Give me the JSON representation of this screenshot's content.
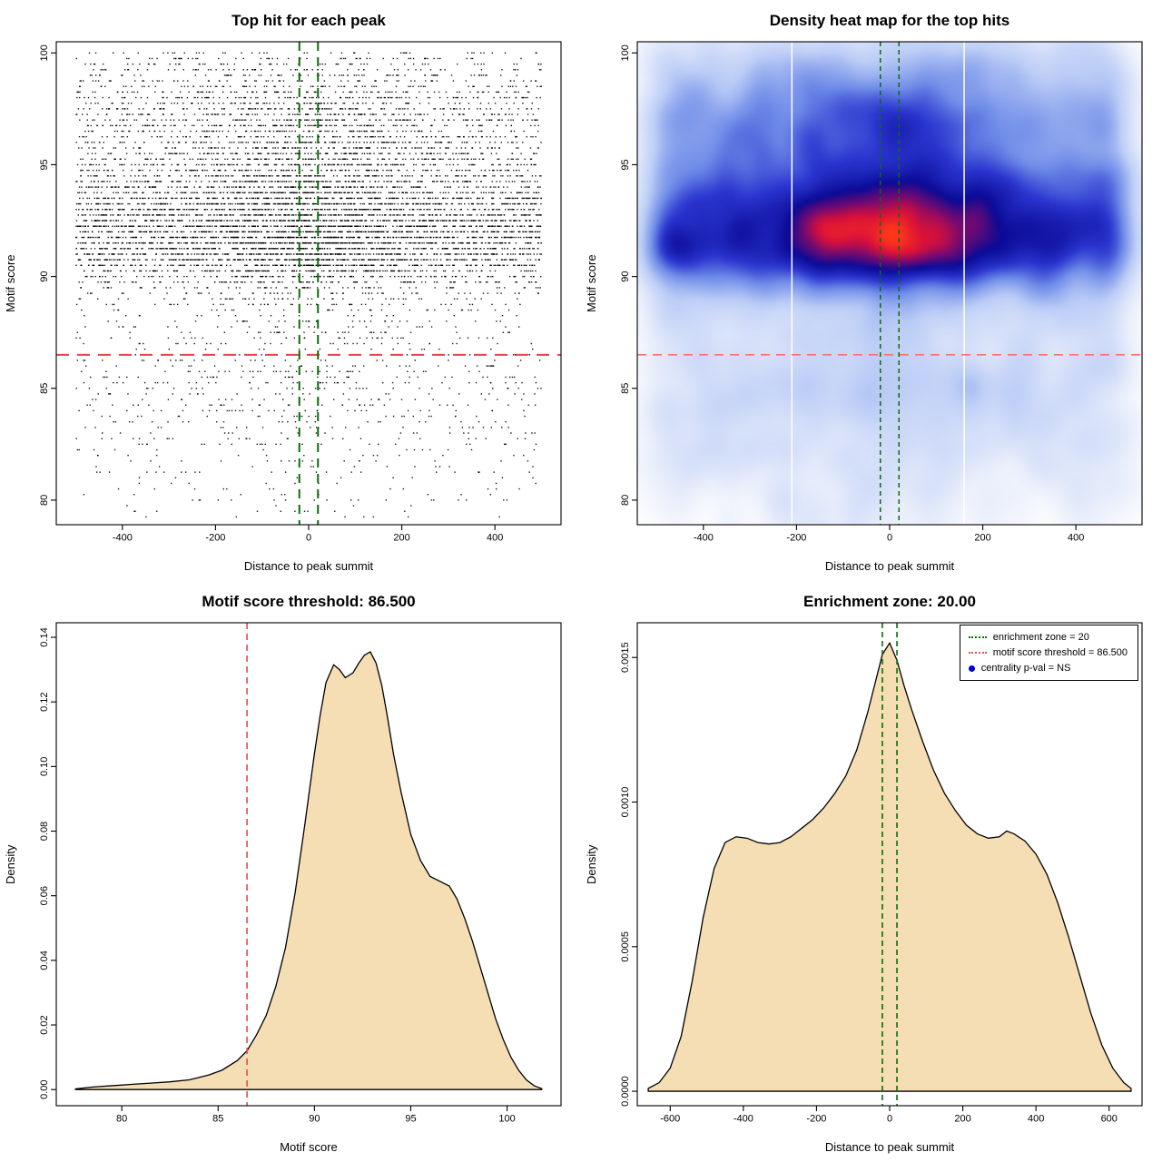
{
  "figure": {
    "background": "#ffffff"
  },
  "charts": [
    {
      "id": "top-hits-scatter",
      "type": "scatter",
      "title": "Top hit for each peak",
      "xlabel": "Distance to peak summit",
      "ylabel": "Motif score",
      "xlim": [
        -542,
        542
      ],
      "ylim": [
        78.9,
        100.5
      ],
      "xticks": [
        -400,
        -200,
        0,
        200,
        400
      ],
      "xtick_labels": [
        "-400",
        "-200",
        "0",
        "200",
        "400"
      ],
      "yticks": [
        80,
        85,
        90,
        95,
        100
      ],
      "ytick_labels": [
        "80",
        "85",
        "90",
        "95",
        "100"
      ],
      "point_color": "#000000",
      "threshold": {
        "y": 86.5,
        "color": "#e64545",
        "dash": [
          14,
          9
        ],
        "width": 2
      },
      "zone": {
        "x": [
          -20,
          20
        ],
        "color": "#0a6d0a",
        "dash": [
          10,
          7
        ],
        "width": 2
      },
      "simulation": {
        "seed": 42,
        "n": 9000,
        "x_range": [
          -500,
          500
        ],
        "y_range": [
          79.0,
          100.1
        ],
        "y_quantize": 0.25,
        "x_components": [
          {
            "type": "uniform",
            "min": -500,
            "max": 500,
            "w": 0.74
          },
          {
            "type": "normal",
            "mean": 0,
            "sd": 150,
            "w": 0.26
          }
        ],
        "y_components": [
          {
            "type": "normal",
            "mean": 91.3,
            "sd": 1.05,
            "w": 0.28
          },
          {
            "type": "normal",
            "mean": 93.0,
            "sd": 1.3,
            "w": 0.26
          },
          {
            "type": "normal",
            "mean": 95.6,
            "sd": 1.8,
            "w": 0.14
          },
          {
            "type": "normal",
            "mean": 97.6,
            "sd": 1.7,
            "w": 0.12
          },
          {
            "type": "uniform",
            "min": 87.0,
            "max": 100.0,
            "w": 0.11
          },
          {
            "type": "normal",
            "mean": 85.0,
            "sd": 1.9,
            "w": 0.06
          },
          {
            "type": "uniform",
            "min": 79.2,
            "max": 86.5,
            "w": 0.03
          }
        ]
      }
    },
    {
      "id": "top-hits-heatmap",
      "type": "heatmap",
      "title": "Density heat map for the top hits",
      "xlabel": "Distance to peak summit",
      "ylabel": "Motif score",
      "xlim": [
        -542,
        542
      ],
      "ylim": [
        78.9,
        100.5
      ],
      "xticks": [
        -400,
        -200,
        0,
        200,
        400
      ],
      "xtick_labels": [
        "-400",
        "-200",
        "0",
        "200",
        "400"
      ],
      "yticks": [
        80,
        85,
        90,
        95,
        100
      ],
      "ytick_labels": [
        "80",
        "85",
        "90",
        "95",
        "100"
      ],
      "gamma": 0.5,
      "colormap": [
        [
          0.0,
          "#ffffff"
        ],
        [
          0.12,
          "#e9eefb"
        ],
        [
          0.3,
          "#bccdf6"
        ],
        [
          0.48,
          "#6f8ce8"
        ],
        [
          0.62,
          "#2a35cf"
        ],
        [
          0.75,
          "#0a0a96"
        ],
        [
          0.85,
          "#7a0a6e"
        ],
        [
          0.92,
          "#d8103a"
        ],
        [
          1.0,
          "#ff3818"
        ]
      ],
      "white_lines": [
        -210,
        160
      ],
      "threshold": {
        "y": 86.5,
        "color": "#ff7070",
        "dash": [
          10,
          7
        ],
        "width": 1.6
      },
      "zone": {
        "x": [
          -20,
          20
        ],
        "color": "#0a6d0a",
        "dash": [
          5,
          4
        ],
        "width": 1.5
      },
      "simulation": {
        "seed": 7,
        "n": 9000,
        "x_range": [
          -500,
          500
        ],
        "y_range": [
          79.0,
          100.1
        ],
        "y_quantize": 0.25,
        "x_components": [
          {
            "type": "uniform",
            "min": -500,
            "max": 500,
            "w": 0.74
          },
          {
            "type": "normal",
            "mean": 0,
            "sd": 150,
            "w": 0.26
          }
        ],
        "y_components": [
          {
            "type": "normal",
            "mean": 91.3,
            "sd": 1.05,
            "w": 0.28
          },
          {
            "type": "normal",
            "mean": 93.0,
            "sd": 1.3,
            "w": 0.26
          },
          {
            "type": "normal",
            "mean": 95.6,
            "sd": 1.8,
            "w": 0.14
          },
          {
            "type": "normal",
            "mean": 97.6,
            "sd": 1.7,
            "w": 0.12
          },
          {
            "type": "uniform",
            "min": 87.0,
            "max": 100.0,
            "w": 0.11
          },
          {
            "type": "normal",
            "mean": 85.0,
            "sd": 1.9,
            "w": 0.06
          },
          {
            "type": "uniform",
            "min": 79.2,
            "max": 86.5,
            "w": 0.03
          }
        ]
      }
    },
    {
      "id": "motif-score-density",
      "type": "area",
      "title": "Motif score threshold: 86.500",
      "xlabel": "Motif score",
      "ylabel": "Density",
      "xlim": [
        76.6,
        102.8
      ],
      "ylim": [
        -0.005,
        0.1445
      ],
      "xticks": [
        80,
        85,
        90,
        95,
        100
      ],
      "xtick_labels": [
        "80",
        "85",
        "90",
        "95",
        "100"
      ],
      "yticks": [
        0,
        0.02,
        0.04,
        0.06,
        0.08,
        0.1,
        0.12,
        0.14
      ],
      "ytick_labels": [
        "0.00",
        "0.02",
        "0.04",
        "0.06",
        "0.08",
        "0.10",
        "0.12",
        "0.14"
      ],
      "fill": "#f5deb3",
      "line_color": "#000000",
      "threshold": {
        "x": 86.5,
        "color": "#e05050",
        "dash": [
          7,
          5
        ],
        "width": 1.6
      },
      "curve": {
        "x": [
          77.6,
          78.5,
          79.5,
          80.5,
          81.5,
          82.5,
          83.5,
          84.5,
          85.2,
          86,
          86.5,
          87,
          87.5,
          88,
          88.5,
          89,
          89.5,
          90,
          90.3,
          90.6,
          91,
          91.3,
          91.6,
          92,
          92.3,
          92.6,
          92.9,
          93.2,
          93.5,
          93.8,
          94.1,
          94.5,
          95,
          95.5,
          96,
          96.5,
          97,
          97.4,
          97.8,
          98.2,
          98.6,
          99,
          99.4,
          99.8,
          100.2,
          100.6,
          101,
          101.4,
          101.8
        ],
        "y": [
          0.0002,
          0.0008,
          0.0012,
          0.0016,
          0.002,
          0.0024,
          0.003,
          0.0045,
          0.006,
          0.009,
          0.012,
          0.017,
          0.023,
          0.032,
          0.044,
          0.061,
          0.082,
          0.104,
          0.116,
          0.126,
          0.1315,
          0.13,
          0.1275,
          0.129,
          0.132,
          0.1345,
          0.1355,
          0.132,
          0.125,
          0.115,
          0.104,
          0.092,
          0.079,
          0.071,
          0.066,
          0.0645,
          0.063,
          0.059,
          0.053,
          0.046,
          0.038,
          0.03,
          0.022,
          0.0155,
          0.01,
          0.006,
          0.003,
          0.0012,
          0.0003
        ]
      }
    },
    {
      "id": "distance-density",
      "type": "area",
      "title": "Enrichment zone: 20.00",
      "xlabel": "Distance to peak summit",
      "ylabel": "Density",
      "xlim": [
        -690,
        690
      ],
      "ylim": [
        -5e-05,
        0.00162
      ],
      "xticks": [
        -600,
        -400,
        -200,
        0,
        200,
        400,
        600
      ],
      "xtick_labels": [
        "-600",
        "-400",
        "-200",
        "0",
        "200",
        "400",
        "600"
      ],
      "yticks": [
        0,
        0.0005,
        0.001,
        0.0015
      ],
      "ytick_labels": [
        "0.0000",
        "0.0005",
        "0.0010",
        "0.0015"
      ],
      "fill": "#f5deb3",
      "line_color": "#000000",
      "zone": {
        "x": [
          -20,
          20
        ],
        "color": "#0a6d0a",
        "dash": [
          6,
          4
        ],
        "width": 1.6
      },
      "curve": {
        "x": [
          -660,
          -630,
          -600,
          -570,
          -540,
          -510,
          -480,
          -450,
          -420,
          -390,
          -360,
          -330,
          -300,
          -270,
          -240,
          -210,
          -180,
          -150,
          -120,
          -90,
          -60,
          -40,
          -20,
          0,
          20,
          40,
          60,
          90,
          120,
          150,
          180,
          210,
          240,
          270,
          300,
          320,
          340,
          370,
          400,
          430,
          460,
          490,
          520,
          550,
          580,
          610,
          640,
          660
        ],
        "y": [
          1e-05,
          3e-05,
          8e-05,
          0.00019,
          0.00038,
          0.0006,
          0.00077,
          0.00086,
          0.00088,
          0.000875,
          0.00086,
          0.000855,
          0.00086,
          0.00088,
          0.00091,
          0.00094,
          0.00098,
          0.00103,
          0.00109,
          0.00118,
          0.00131,
          0.00141,
          0.00151,
          0.00155,
          0.00149,
          0.0014,
          0.00132,
          0.00121,
          0.00111,
          0.00103,
          0.00097,
          0.00092,
          0.00089,
          0.000875,
          0.00088,
          0.0009,
          0.00089,
          0.000865,
          0.00082,
          0.00075,
          0.00065,
          0.00053,
          0.0004,
          0.00027,
          0.00016,
          8e-05,
          3e-05,
          1e-05
        ]
      },
      "legend": {
        "items": [
          {
            "marker": "dotted-line",
            "color": "#0a6d0a",
            "label": "enrichment zone = 20"
          },
          {
            "marker": "dotted-line",
            "color": "#e05050",
            "label": "motif score threshold = 86.500"
          },
          {
            "marker": "dot",
            "color": "#0000cc",
            "label": "centrality p-val = NS"
          }
        ]
      }
    }
  ]
}
